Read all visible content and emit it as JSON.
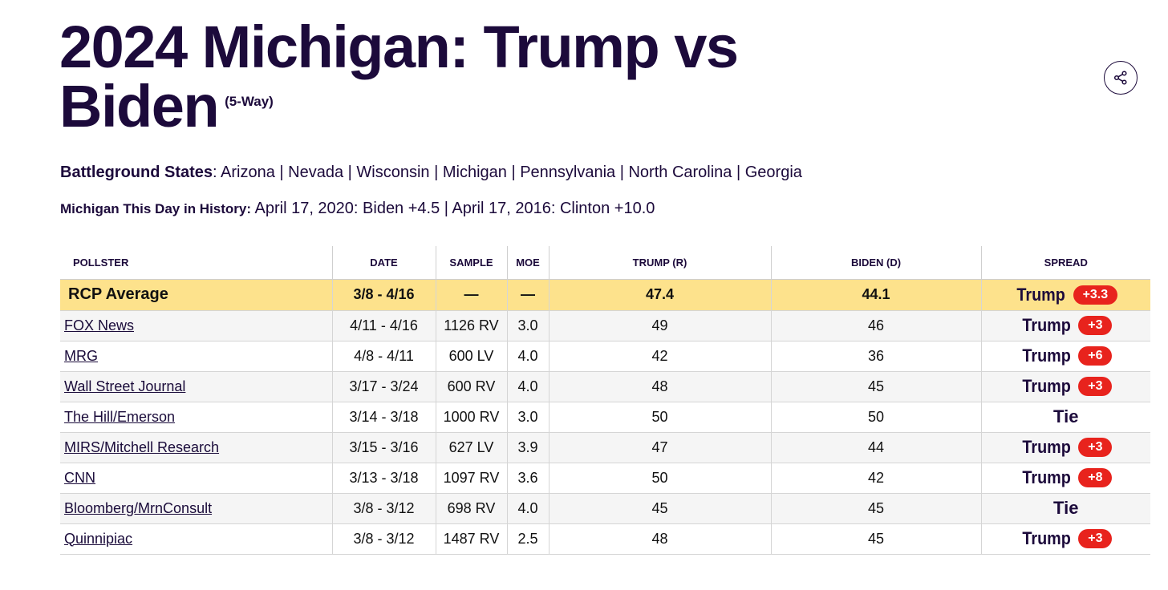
{
  "header": {
    "title": "2024 Michigan: Trump vs Biden",
    "subtitle": "(5-Way)"
  },
  "battleground": {
    "label": "Battleground States",
    "states": "Arizona | Nevada | Wisconsin | Michigan | Pennsylvania | North Carolina | Georgia"
  },
  "history": {
    "label": "Michigan This Day in History:",
    "text": "April 17, 2020: Biden +4.5 | April 17, 2016: Clinton +10.0"
  },
  "table": {
    "columns": [
      "POLLSTER",
      "DATE",
      "SAMPLE",
      "MOE",
      "TRUMP (R)",
      "BIDEN (D)",
      "SPREAD"
    ],
    "average": {
      "pollster": "RCP Average",
      "date": "3/8 - 4/16",
      "sample": "—",
      "moe": "—",
      "trump": "47.4",
      "biden": "44.1",
      "spread_leader": "Trump",
      "spread_value": "+3.3"
    },
    "rows": [
      {
        "pollster": "FOX News",
        "date": "4/11 - 4/16",
        "sample": "1126 RV",
        "moe": "3.0",
        "trump": "49",
        "biden": "46",
        "spread_leader": "Trump",
        "spread_value": "+3"
      },
      {
        "pollster": "MRG",
        "date": "4/8 - 4/11",
        "sample": "600 LV",
        "moe": "4.0",
        "trump": "42",
        "biden": "36",
        "spread_leader": "Trump",
        "spread_value": "+6"
      },
      {
        "pollster": "Wall Street Journal",
        "date": "3/17 - 3/24",
        "sample": "600 RV",
        "moe": "4.0",
        "trump": "48",
        "biden": "45",
        "spread_leader": "Trump",
        "spread_value": "+3"
      },
      {
        "pollster": "The Hill/Emerson",
        "date": "3/14 - 3/18",
        "sample": "1000 RV",
        "moe": "3.0",
        "trump": "50",
        "biden": "50",
        "spread_leader": "Tie",
        "spread_value": ""
      },
      {
        "pollster": "MIRS/Mitchell Research",
        "date": "3/15 - 3/16",
        "sample": "627 LV",
        "moe": "3.9",
        "trump": "47",
        "biden": "44",
        "spread_leader": "Trump",
        "spread_value": "+3"
      },
      {
        "pollster": "CNN",
        "date": "3/13 - 3/18",
        "sample": "1097 RV",
        "moe": "3.6",
        "trump": "50",
        "biden": "42",
        "spread_leader": "Trump",
        "spread_value": "+8"
      },
      {
        "pollster": "Bloomberg/MrnConsult",
        "date": "3/8 - 3/12",
        "sample": "698 RV",
        "moe": "4.0",
        "trump": "45",
        "biden": "45",
        "spread_leader": "Tie",
        "spread_value": ""
      },
      {
        "pollster": "Quinnipiac",
        "date": "3/8 - 3/12",
        "sample": "1487 RV",
        "moe": "2.5",
        "trump": "48",
        "biden": "45",
        "spread_leader": "Trump",
        "spread_value": "+3"
      }
    ]
  },
  "icons": {
    "share": "share-icon"
  },
  "colors": {
    "title": "#1c0a3b",
    "average_row": "#fde28c",
    "spread_badge": "#e8231d"
  }
}
